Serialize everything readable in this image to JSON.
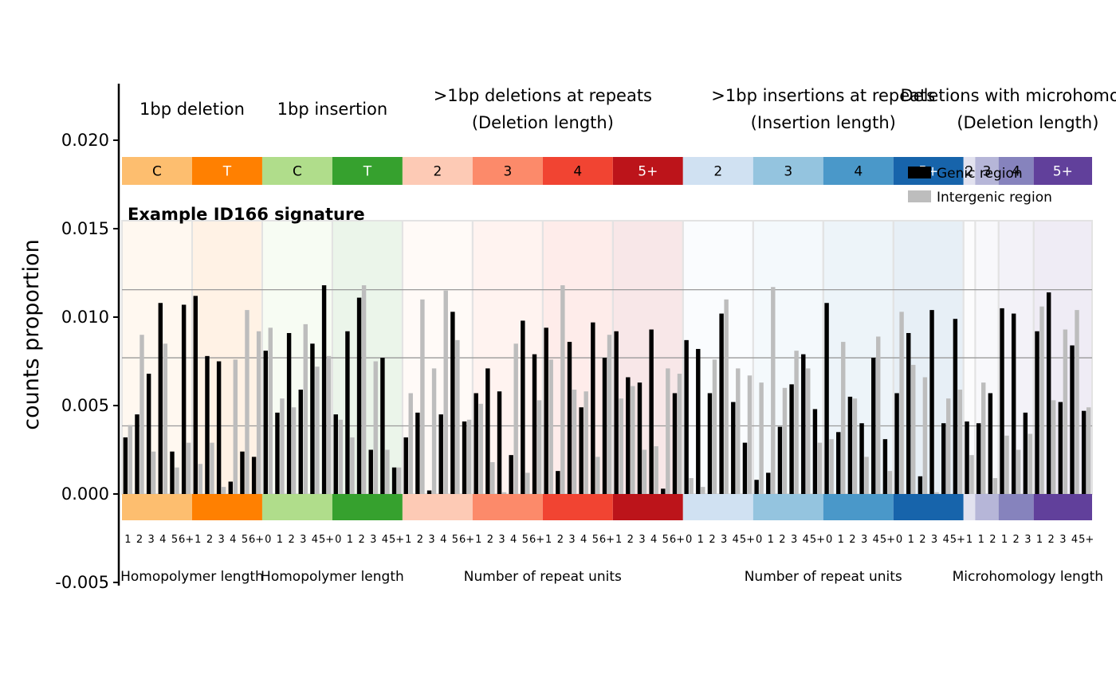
{
  "chart_data": {
    "type": "bar",
    "title": "Example ID166 signature",
    "ylabel": "counts proportion",
    "ylim": [
      -0.005,
      0.0235
    ],
    "yticks": [
      "-0.005",
      "0.000",
      "0.005",
      "0.010",
      "0.015",
      "0.020"
    ],
    "ytick_values": [
      -0.005,
      0.0,
      0.005,
      0.01,
      0.015,
      0.02
    ],
    "hlines": [
      0.00385,
      0.0077,
      0.01155
    ],
    "legend": [
      {
        "name": "Genic region",
        "color": "#000000"
      },
      {
        "name": "Intergenic region",
        "color": "#bdbdbd"
      }
    ],
    "groups": [
      {
        "title": "1bp deletion",
        "subtitle": "",
        "xlabel": "Homopolymer length"
      },
      {
        "title": "1bp insertion",
        "subtitle": "",
        "xlabel": "Homopolymer length"
      },
      {
        "title": ">1bp deletions at repeats",
        "subtitle": "(Deletion length)",
        "xlabel": "Number of repeat units"
      },
      {
        "title": ">1bp insertions at repeats",
        "subtitle": "(Insertion length)",
        "xlabel": "Number of repeat units"
      },
      {
        "title": "Deletions with microhomology",
        "subtitle": "(Deletion length)",
        "xlabel": "Microhomology length"
      }
    ],
    "blocks": [
      {
        "label": "C",
        "group": 0,
        "color": "#fdbe6f",
        "text_color": "#000000",
        "ticks": [
          "1",
          "2",
          "3",
          "4",
          "5",
          "6+"
        ]
      },
      {
        "label": "T",
        "group": 0,
        "color": "#ff8001",
        "text_color": "#ffffff",
        "ticks": [
          "1",
          "2",
          "3",
          "4",
          "5",
          "6+"
        ]
      },
      {
        "label": "C",
        "group": 1,
        "color": "#b0dd8b",
        "text_color": "#000000",
        "ticks": [
          "0",
          "1",
          "2",
          "3",
          "4",
          "5+"
        ]
      },
      {
        "label": "T",
        "group": 1,
        "color": "#36a12e",
        "text_color": "#ffffff",
        "ticks": [
          "0",
          "1",
          "2",
          "3",
          "4",
          "5+"
        ]
      },
      {
        "label": "2",
        "group": 2,
        "color": "#fdcab5",
        "text_color": "#000000",
        "ticks": [
          "1",
          "2",
          "3",
          "4",
          "5",
          "6+"
        ]
      },
      {
        "label": "3",
        "group": 2,
        "color": "#fc8a6a",
        "text_color": "#000000",
        "ticks": [
          "1",
          "2",
          "3",
          "4",
          "5",
          "6+"
        ]
      },
      {
        "label": "4",
        "group": 2,
        "color": "#f14432",
        "text_color": "#000000",
        "ticks": [
          "1",
          "2",
          "3",
          "4",
          "5",
          "6+"
        ]
      },
      {
        "label": "5+",
        "group": 2,
        "color": "#bc141a",
        "text_color": "#ffffff",
        "ticks": [
          "1",
          "2",
          "3",
          "4",
          "5",
          "6+"
        ]
      },
      {
        "label": "2",
        "group": 3,
        "color": "#d0e1f2",
        "text_color": "#000000",
        "ticks": [
          "0",
          "1",
          "2",
          "3",
          "4",
          "5+"
        ]
      },
      {
        "label": "3",
        "group": 3,
        "color": "#94c4df",
        "text_color": "#000000",
        "ticks": [
          "0",
          "1",
          "2",
          "3",
          "4",
          "5+"
        ]
      },
      {
        "label": "4",
        "group": 3,
        "color": "#4a98c9",
        "text_color": "#000000",
        "ticks": [
          "0",
          "1",
          "2",
          "3",
          "4",
          "5+"
        ]
      },
      {
        "label": "5+",
        "group": 3,
        "color": "#1764ab",
        "text_color": "#ffffff",
        "ticks": [
          "0",
          "1",
          "2",
          "3",
          "4",
          "5+"
        ]
      },
      {
        "label": "2",
        "group": 4,
        "color": "#e2e2ef",
        "text_color": "#000000",
        "ticks": [
          "1"
        ]
      },
      {
        "label": "3",
        "group": 4,
        "color": "#b6b6d8",
        "text_color": "#000000",
        "ticks": [
          "1",
          "2"
        ]
      },
      {
        "label": "4",
        "group": 4,
        "color": "#8683bd",
        "text_color": "#000000",
        "ticks": [
          "1",
          "2",
          "3"
        ]
      },
      {
        "label": "5+",
        "group": 4,
        "color": "#61409b",
        "text_color": "#ffffff",
        "ticks": [
          "1",
          "2",
          "3",
          "4",
          "5+"
        ]
      }
    ],
    "series": [
      {
        "name": "Genic region",
        "color": "#000000",
        "values": [
          0.0032,
          0.0045,
          0.0068,
          0.0108,
          0.0024,
          0.0107,
          0.0112,
          0.0078,
          0.0075,
          0.0007,
          0.0024,
          0.0021,
          0.0081,
          0.0046,
          0.0091,
          0.0059,
          0.0085,
          0.0118,
          0.0045,
          0.0092,
          0.0111,
          0.0025,
          0.0077,
          0.0015,
          0.0032,
          0.0046,
          0.0002,
          0.0045,
          0.0103,
          0.0041,
          0.0057,
          0.0071,
          0.0058,
          0.0022,
          0.0098,
          0.0079,
          0.0094,
          0.0013,
          0.0086,
          0.0049,
          0.0097,
          0.0077,
          0.0092,
          0.0066,
          0.0063,
          0.0093,
          0.0003,
          0.0057,
          0.0087,
          0.0082,
          0.0057,
          0.0102,
          0.0052,
          0.0029,
          0.0008,
          0.0012,
          0.0038,
          0.0062,
          0.0079,
          0.0048,
          0.0108,
          0.0035,
          0.0055,
          0.004,
          0.0077,
          0.0031,
          0.0057,
          0.0091,
          0.001,
          0.0104,
          0.004,
          0.0099,
          0.0041,
          0.004,
          0.0057,
          0.0105,
          0.0102,
          0.0046,
          0.0092,
          0.0114,
          0.0052,
          0.0084,
          0.0047
        ]
      },
      {
        "name": "Intergenic region",
        "color": "#bdbdbd",
        "values": [
          0.0039,
          0.009,
          0.0024,
          0.0085,
          0.0015,
          0.0029,
          0.0017,
          0.0029,
          0.0004,
          0.0076,
          0.0104,
          0.0092,
          0.0094,
          0.0054,
          0.0049,
          0.0096,
          0.0072,
          0.0078,
          0.0042,
          0.0032,
          0.0118,
          0.0075,
          0.0025,
          0.0015,
          0.0057,
          0.011,
          0.0071,
          0.0115,
          0.0087,
          0.0042,
          0.0051,
          0.0018,
          0.0001,
          0.0085,
          0.0012,
          0.0053,
          0.0076,
          0.0118,
          0.0059,
          0.0058,
          0.0021,
          0.009,
          0.0054,
          0.0061,
          0.0025,
          0.0027,
          0.0071,
          0.0068,
          0.0009,
          0.0004,
          0.0076,
          0.011,
          0.0071,
          0.0067,
          0.0063,
          0.0117,
          0.006,
          0.0081,
          0.0071,
          0.0029,
          0.0031,
          0.0086,
          0.0054,
          0.0021,
          0.0089,
          0.0013,
          0.0103,
          0.0073,
          0.0066,
          0.0001,
          0.0054,
          0.0059,
          0.0022,
          0.0063,
          0.0009,
          0.0033,
          0.0025,
          0.0034,
          0.0106,
          0.0053,
          0.0093,
          0.0104,
          0.0049
        ]
      }
    ]
  }
}
